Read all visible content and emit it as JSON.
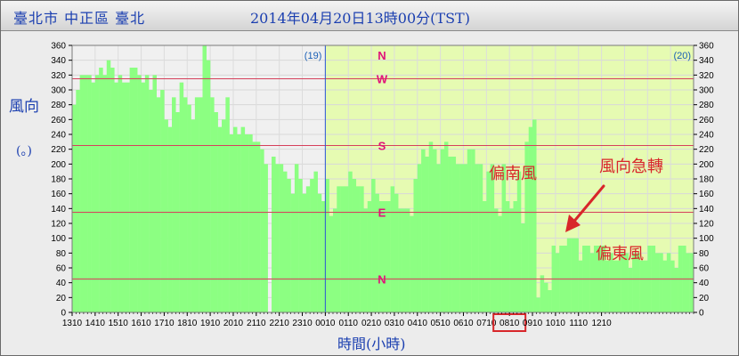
{
  "header": {
    "station": "臺北市 中正區 臺北",
    "datetime": "2014年04月20日13時00分(TST)"
  },
  "axis_labels": {
    "y_title": "風向",
    "y_unit": "(。)",
    "x_title": "時間(小時)"
  },
  "chart_data": {
    "type": "bar",
    "ylabel": "風向 (。)",
    "xlabel": "時間(小時)",
    "ylim": [
      0,
      360
    ],
    "yticks": [
      0,
      20,
      40,
      60,
      80,
      100,
      120,
      140,
      160,
      180,
      200,
      220,
      240,
      260,
      280,
      300,
      320,
      340,
      360
    ],
    "xticks": [
      "1310",
      "1410",
      "1510",
      "1610",
      "1710",
      "1810",
      "1910",
      "2010",
      "2110",
      "2210",
      "2310",
      "0010",
      "0110",
      "0210",
      "0310",
      "0410",
      "0510",
      "0610",
      "0710",
      "0810",
      "0910",
      "1010",
      "1110",
      "1210"
    ],
    "interval_minutes": 10,
    "values": [
      280,
      300,
      320,
      320,
      320,
      310,
      320,
      330,
      320,
      340,
      330,
      310,
      320,
      310,
      310,
      330,
      330,
      320,
      310,
      320,
      300,
      320,
      290,
      300,
      260,
      250,
      290,
      270,
      310,
      290,
      280,
      260,
      290,
      290,
      360,
      340,
      290,
      270,
      250,
      260,
      290,
      240,
      250,
      240,
      250,
      240,
      240,
      230,
      230,
      220,
      200,
      0,
      210,
      200,
      200,
      190,
      180,
      160,
      200,
      180,
      160,
      170,
      180,
      190,
      160,
      150,
      180,
      130,
      140,
      170,
      170,
      170,
      190,
      180,
      170,
      170,
      140,
      150,
      180,
      160,
      150,
      150,
      150,
      170,
      160,
      140,
      140,
      140,
      130,
      180,
      200,
      220,
      210,
      230,
      220,
      200,
      220,
      230,
      210,
      210,
      200,
      200,
      200,
      220,
      220,
      200,
      200,
      150,
      190,
      200,
      140,
      130,
      200,
      150,
      140,
      150,
      190,
      120,
      230,
      250,
      260,
      20,
      50,
      40,
      30,
      90,
      80,
      90,
      90,
      100,
      100,
      100,
      70,
      90,
      90,
      80,
      90,
      90,
      90,
      70,
      80,
      70,
      70,
      80,
      80,
      60,
      80,
      80,
      70,
      70,
      90,
      90,
      80,
      80,
      70,
      80,
      70,
      60,
      90,
      90,
      80,
      80
    ],
    "day_markers": [
      {
        "label": "(19)",
        "index": 66
      },
      {
        "label": "(20)",
        "index": 0
      }
    ],
    "direction_lines": [
      {
        "label": "N",
        "value": 360
      },
      {
        "label": "W",
        "value": 315
      },
      {
        "label": "S",
        "value": 225
      },
      {
        "label": "E",
        "value": 135
      },
      {
        "label": "N",
        "value": 45
      }
    ],
    "highlighted_tick": "0810",
    "annotations": [
      "偏南風",
      "風向急轉",
      "偏東風"
    ],
    "colors": {
      "bar": "#8cff82",
      "plot_day1": "#f0f0f0",
      "plot_day2": "#e6fbb2",
      "direction_line": "#d6405c",
      "day_line": "#2b57d6",
      "annotation": "#d8262a"
    }
  }
}
